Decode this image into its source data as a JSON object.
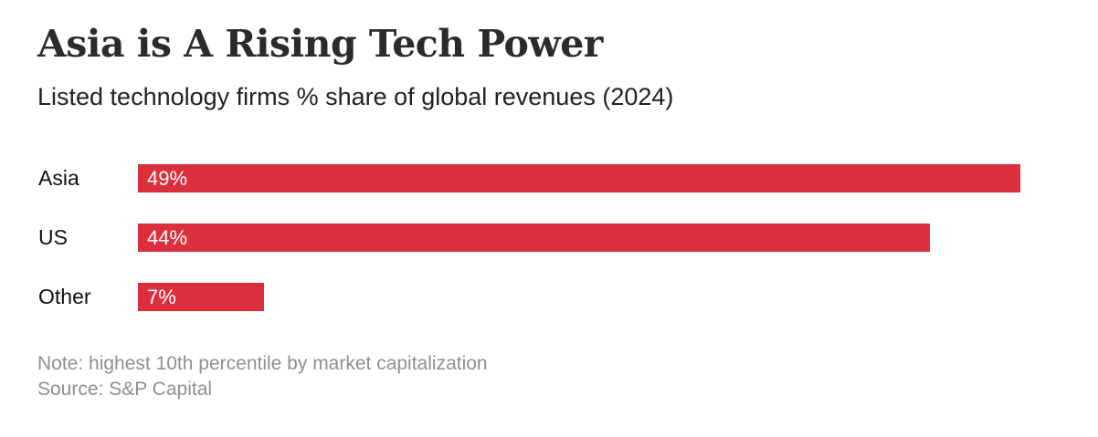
{
  "chart_data": {
    "type": "bar",
    "orientation": "horizontal",
    "title": "Asia is A Rising Tech Power",
    "subtitle": "Listed technology firms % share of global revenues (2024)",
    "categories": [
      "Asia",
      "US",
      "Other"
    ],
    "values": [
      49,
      44,
      7
    ],
    "data_labels": [
      "49%",
      "44%",
      "7%"
    ],
    "unit": "%",
    "bar_color": "#dc2f3e",
    "grid": false,
    "legend": "none",
    "note": "Note: highest 10th percentile by market capitalization",
    "source": "Source: S&P Capital"
  }
}
